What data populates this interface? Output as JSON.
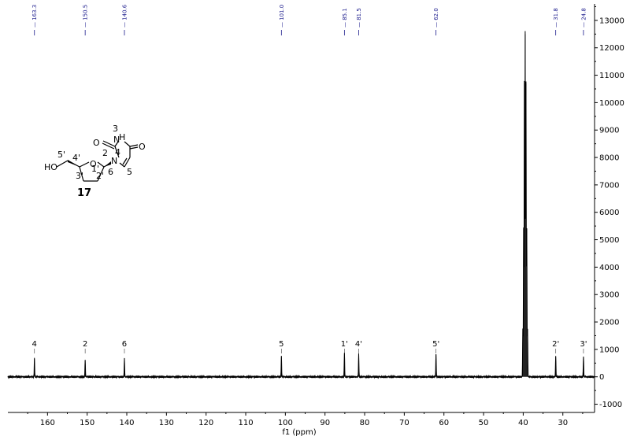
{
  "chart_data": {
    "type": "line",
    "xlabel": "f1 (ppm)",
    "ylabel": "",
    "xlim": [
      170,
      22
    ],
    "ylim": [
      -1300,
      13600
    ],
    "x_ticks": [
      160,
      150,
      140,
      130,
      120,
      110,
      100,
      90,
      80,
      70,
      60,
      50,
      40,
      30
    ],
    "y_ticks": [
      -1000,
      0,
      1000,
      2000,
      3000,
      4000,
      5000,
      6000,
      7000,
      8000,
      9000,
      10000,
      11000,
      12000,
      13000
    ],
    "peak_labels": [
      "163.3",
      "150.5",
      "140.6",
      "101.0",
      "85.1",
      "81.5",
      "62.0",
      "31.8",
      "24.8"
    ],
    "peaks": [
      {
        "x": 163.3,
        "y": 650,
        "assignment": "4"
      },
      {
        "x": 150.5,
        "y": 620,
        "assignment": "2"
      },
      {
        "x": 140.6,
        "y": 660,
        "assignment": "6"
      },
      {
        "x": 101.0,
        "y": 740,
        "assignment": "5"
      },
      {
        "x": 85.1,
        "y": 870,
        "assignment": "1'"
      },
      {
        "x": 81.5,
        "y": 820,
        "assignment": "4'"
      },
      {
        "x": 62.0,
        "y": 820,
        "assignment": "5'"
      },
      {
        "x": 31.8,
        "y": 760,
        "assignment": "2'"
      },
      {
        "x": 24.8,
        "y": 730,
        "assignment": "3'"
      }
    ],
    "solvent_peaks": [
      {
        "x": 40.1,
        "y": 1750
      },
      {
        "x": 39.9,
        "y": 5400
      },
      {
        "x": 39.7,
        "y": 10700
      },
      {
        "x": 39.5,
        "y": 12500
      },
      {
        "x": 39.3,
        "y": 10700
      },
      {
        "x": 39.1,
        "y": 5400
      },
      {
        "x": 38.9,
        "y": 1750
      }
    ]
  },
  "structure": {
    "compound_number": "17",
    "labels": {
      "ho": "HO",
      "c5p": "5'",
      "c4p": "4'",
      "ring_o": "O",
      "c1p": "1'",
      "c3p": "3'",
      "c2p": "2'",
      "n1": "N",
      "c6": "6",
      "c5": "5",
      "c2": "2",
      "c4": "4",
      "n3h": "H",
      "n3_number": "3",
      "n3_atom": "N",
      "o2": "O",
      "o4": "O"
    }
  }
}
